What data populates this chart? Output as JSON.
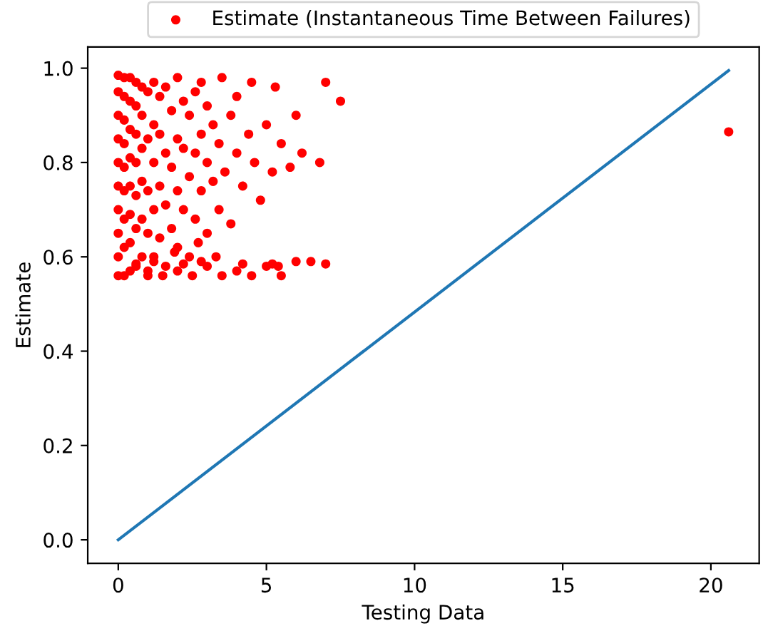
{
  "chart_data": {
    "type": "scatter",
    "xlabel": "Testing Data",
    "ylabel": "Estimate",
    "xlim": [
      -1.03,
      21.63
    ],
    "ylim": [
      -0.05,
      1.045
    ],
    "xticks": [
      0,
      5,
      10,
      15,
      20
    ],
    "yticks": [
      {
        "value": 0,
        "label": "0.0"
      },
      {
        "value": 0.2,
        "label": "0.2"
      },
      {
        "value": 0.4,
        "label": "0.4"
      },
      {
        "value": 0.6,
        "label": "0.6"
      },
      {
        "value": 0.8,
        "label": "0.8"
      },
      {
        "value": 1,
        "label": "1.0"
      }
    ],
    "legend": "top",
    "grid": false,
    "series": [
      {
        "name": "Estimate (Instantaneous Time Between Failures)",
        "marker": "circle",
        "color": "#ff0000",
        "x": [
          0,
          0,
          0,
          0,
          0,
          0,
          0,
          0,
          0,
          0,
          0.2,
          0.2,
          0.2,
          0.2,
          0.2,
          0.2,
          0.2,
          0.2,
          0.2,
          0.4,
          0.4,
          0.4,
          0.4,
          0.4,
          0.4,
          0.4,
          0.4,
          0.6,
          0.6,
          0.6,
          0.6,
          0.6,
          0.6,
          0.6,
          0.8,
          0.8,
          0.8,
          0.8,
          0.8,
          0.8,
          1.0,
          1.0,
          1.0,
          1.0,
          1.0,
          1.2,
          1.2,
          1.2,
          1.2,
          1.2,
          1.4,
          1.4,
          1.4,
          1.4,
          1.6,
          1.6,
          1.6,
          1.6,
          1.8,
          1.8,
          1.8,
          2.0,
          2.0,
          2.0,
          2.0,
          2.2,
          2.2,
          2.2,
          2.4,
          2.4,
          2.4,
          2.6,
          2.6,
          2.6,
          2.8,
          2.8,
          2.8,
          3.0,
          3.0,
          3.0,
          3.2,
          3.2,
          3.4,
          3.4,
          3.5,
          3.6,
          3.8,
          3.8,
          4.0,
          4.0,
          4.2,
          4.4,
          4.5,
          4.6,
          4.8,
          5.0,
          5.2,
          5.3,
          5.5,
          5.8,
          6.0,
          6.2,
          6.8,
          7.0,
          7.5,
          1.0,
          1.5,
          2.0,
          2.5,
          3.0,
          3.5,
          4.0,
          4.5,
          5.0,
          5.5,
          6.0,
          0.6,
          1.2,
          2.2,
          2.8,
          4.2,
          5.2,
          6.5,
          7.0,
          1.9,
          2.7,
          3.3,
          5.4,
          20.6
        ],
        "values": [
          0.56,
          0.6,
          0.65,
          0.7,
          0.75,
          0.8,
          0.85,
          0.9,
          0.95,
          0.985,
          0.56,
          0.62,
          0.68,
          0.74,
          0.79,
          0.84,
          0.89,
          0.94,
          0.98,
          0.57,
          0.63,
          0.69,
          0.75,
          0.81,
          0.87,
          0.93,
          0.98,
          0.58,
          0.66,
          0.73,
          0.8,
          0.86,
          0.92,
          0.97,
          0.6,
          0.68,
          0.76,
          0.83,
          0.9,
          0.96,
          0.57,
          0.65,
          0.74,
          0.85,
          0.95,
          0.6,
          0.7,
          0.8,
          0.88,
          0.97,
          0.64,
          0.75,
          0.86,
          0.94,
          0.58,
          0.71,
          0.82,
          0.96,
          0.66,
          0.79,
          0.91,
          0.62,
          0.74,
          0.85,
          0.98,
          0.7,
          0.83,
          0.93,
          0.6,
          0.77,
          0.9,
          0.68,
          0.82,
          0.95,
          0.74,
          0.86,
          0.97,
          0.65,
          0.8,
          0.92,
          0.76,
          0.88,
          0.7,
          0.84,
          0.98,
          0.78,
          0.67,
          0.9,
          0.82,
          0.94,
          0.75,
          0.86,
          0.97,
          0.8,
          0.72,
          0.88,
          0.78,
          0.96,
          0.84,
          0.79,
          0.9,
          0.82,
          0.8,
          0.97,
          0.93,
          0.56,
          0.56,
          0.57,
          0.56,
          0.58,
          0.56,
          0.57,
          0.56,
          0.58,
          0.56,
          0.59,
          0.585,
          0.59,
          0.585,
          0.59,
          0.585,
          0.585,
          0.59,
          0.585,
          0.61,
          0.63,
          0.6,
          0.58,
          0.865
        ]
      },
      {
        "type": "line",
        "color": "#1f77b4",
        "x": [
          0,
          20.6
        ],
        "values": [
          0,
          0.995
        ]
      }
    ]
  }
}
